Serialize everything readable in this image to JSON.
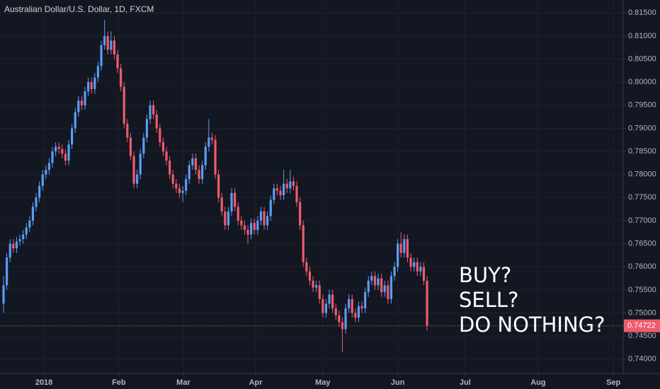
{
  "chart_data": {
    "type": "candlestick",
    "title": "Australian Dollar/U.S. Dollar, 1D, FXCM",
    "annotations": [
      "BUY?",
      "SELL?",
      "DO NOTHING?"
    ],
    "up_color": "#5b9cf6",
    "down_color": "#ef5b6b",
    "grid": true,
    "ylim": [
      0.7369,
      0.8178
    ],
    "xlim": [
      -1.09,
      190.2
    ],
    "yticks": [
      {
        "value": 0.74,
        "label": "0.74000"
      },
      {
        "value": 0.745,
        "label": "0.74500"
      },
      {
        "value": 0.75,
        "label": "0.75000"
      },
      {
        "value": 0.755,
        "label": "0.75500"
      },
      {
        "value": 0.76,
        "label": "0.76000"
      },
      {
        "value": 0.765,
        "label": "0.76500"
      },
      {
        "value": 0.77,
        "label": "0.77000"
      },
      {
        "value": 0.775,
        "label": "0.77500"
      },
      {
        "value": 0.78,
        "label": "0.78000"
      },
      {
        "value": 0.785,
        "label": "0.78500"
      },
      {
        "value": 0.79,
        "label": "0.79000"
      },
      {
        "value": 0.795,
        "label": "0.79500"
      },
      {
        "value": 0.8,
        "label": "0.80000"
      },
      {
        "value": 0.805,
        "label": "0.80500"
      },
      {
        "value": 0.81,
        "label": "0.81000"
      },
      {
        "value": 0.815,
        "label": "0.81500"
      }
    ],
    "xticks": [
      {
        "value": 12.4,
        "label": "2018"
      },
      {
        "value": 35.4,
        "label": "Feb"
      },
      {
        "value": 55.2,
        "label": "Mar"
      },
      {
        "value": 77.4,
        "label": "Apr"
      },
      {
        "value": 98.0,
        "label": "May"
      },
      {
        "value": 121.0,
        "label": "Jun"
      },
      {
        "value": 141.7,
        "label": "Jul"
      },
      {
        "value": 164.1,
        "label": "Aug"
      },
      {
        "value": 187.2,
        "label": "Sep"
      }
    ],
    "open": [
      0.752,
      0.756,
      0.762,
      0.765,
      0.764,
      0.7655,
      0.766,
      0.767,
      0.7685,
      0.77,
      0.773,
      0.775,
      0.7775,
      0.78,
      0.781,
      0.7825,
      0.785,
      0.786,
      0.7855,
      0.7845,
      0.783,
      0.7865,
      0.79,
      0.7935,
      0.796,
      0.795,
      0.798,
      0.8,
      0.7985,
      0.801,
      0.8035,
      0.808,
      0.81,
      0.807,
      0.809,
      0.806,
      0.803,
      0.799,
      0.791,
      0.788,
      0.784,
      0.778,
      0.78,
      0.7845,
      0.788,
      0.792,
      0.795,
      0.793,
      0.79,
      0.787,
      0.785,
      0.783,
      0.78,
      0.778,
      0.777,
      0.776,
      0.7765,
      0.779,
      0.782,
      0.7835,
      0.781,
      0.779,
      0.782,
      0.786,
      0.788,
      0.7875,
      0.78,
      0.775,
      0.772,
      0.769,
      0.772,
      0.776,
      0.773,
      0.77,
      0.769,
      0.768,
      0.767,
      0.7695,
      0.768,
      0.77,
      0.772,
      0.769,
      0.771,
      0.7745,
      0.777,
      0.7765,
      0.7755,
      0.778,
      0.777,
      0.7785,
      0.7775,
      0.774,
      0.769,
      0.761,
      0.759,
      0.757,
      0.7555,
      0.756,
      0.753,
      0.75,
      0.752,
      0.754,
      0.751,
      0.7495,
      0.748,
      0.7465,
      0.751,
      0.753,
      0.75,
      0.749,
      0.7515,
      0.751,
      0.7545,
      0.757,
      0.758,
      0.756,
      0.7575,
      0.7545,
      0.756,
      0.753,
      0.758,
      0.76,
      0.765,
      0.763,
      0.766,
      0.762,
      0.76,
      0.761,
      0.759,
      0.76,
      0.757
    ],
    "high": [
      0.758,
      0.763,
      0.766,
      0.766,
      0.7665,
      0.767,
      0.768,
      0.7695,
      0.771,
      0.774,
      0.776,
      0.7785,
      0.781,
      0.782,
      0.7835,
      0.786,
      0.787,
      0.787,
      0.7865,
      0.7855,
      0.7875,
      0.791,
      0.7945,
      0.797,
      0.797,
      0.799,
      0.801,
      0.801,
      0.802,
      0.8045,
      0.809,
      0.8135,
      0.811,
      0.811,
      0.81,
      0.807,
      0.804,
      0.8,
      0.792,
      0.789,
      0.785,
      0.781,
      0.7855,
      0.789,
      0.793,
      0.796,
      0.796,
      0.794,
      0.791,
      0.788,
      0.786,
      0.784,
      0.781,
      0.779,
      0.778,
      0.7775,
      0.78,
      0.783,
      0.7845,
      0.7845,
      0.782,
      0.783,
      0.787,
      0.792,
      0.789,
      0.7885,
      0.781,
      0.776,
      0.773,
      0.773,
      0.777,
      0.777,
      0.774,
      0.771,
      0.77,
      0.769,
      0.7705,
      0.7705,
      0.771,
      0.773,
      0.773,
      0.772,
      0.7755,
      0.778,
      0.778,
      0.7775,
      0.781,
      0.779,
      0.781,
      0.7795,
      0.7785,
      0.775,
      0.77,
      0.762,
      0.76,
      0.758,
      0.757,
      0.757,
      0.754,
      0.753,
      0.755,
      0.755,
      0.752,
      0.7505,
      0.749,
      0.752,
      0.754,
      0.754,
      0.751,
      0.7525,
      0.7525,
      0.7555,
      0.758,
      0.759,
      0.759,
      0.7585,
      0.7585,
      0.757,
      0.757,
      0.759,
      0.761,
      0.766,
      0.7675,
      0.767,
      0.767,
      0.763,
      0.762,
      0.762,
      0.761,
      0.761,
      0.758
    ],
    "low": [
      0.75,
      0.755,
      0.761,
      0.763,
      0.763,
      0.7645,
      0.765,
      0.766,
      0.7675,
      0.769,
      0.772,
      0.774,
      0.7765,
      0.779,
      0.78,
      0.7815,
      0.784,
      0.7845,
      0.7835,
      0.782,
      0.782,
      0.7855,
      0.789,
      0.7925,
      0.794,
      0.794,
      0.797,
      0.7975,
      0.7975,
      0.8,
      0.8025,
      0.807,
      0.806,
      0.806,
      0.805,
      0.802,
      0.798,
      0.79,
      0.787,
      0.783,
      0.777,
      0.777,
      0.779,
      0.7835,
      0.787,
      0.791,
      0.792,
      0.789,
      0.786,
      0.784,
      0.782,
      0.779,
      0.777,
      0.776,
      0.775,
      0.774,
      0.7755,
      0.778,
      0.781,
      0.78,
      0.778,
      0.778,
      0.781,
      0.785,
      0.7865,
      0.779,
      0.774,
      0.771,
      0.768,
      0.768,
      0.771,
      0.772,
      0.769,
      0.768,
      0.767,
      0.765,
      0.766,
      0.767,
      0.767,
      0.769,
      0.768,
      0.768,
      0.77,
      0.7735,
      0.7755,
      0.7745,
      0.7745,
      0.776,
      0.776,
      0.7765,
      0.773,
      0.768,
      0.76,
      0.758,
      0.756,
      0.7545,
      0.7545,
      0.752,
      0.749,
      0.749,
      0.751,
      0.75,
      0.7485,
      0.747,
      0.7415,
      0.7455,
      0.75,
      0.749,
      0.748,
      0.748,
      0.75,
      0.75,
      0.7535,
      0.756,
      0.755,
      0.755,
      0.7535,
      0.7535,
      0.752,
      0.752,
      0.757,
      0.759,
      0.762,
      0.762,
      0.761,
      0.759,
      0.759,
      0.758,
      0.758,
      0.756,
      0.7462
    ],
    "close": [
      0.756,
      0.762,
      0.765,
      0.764,
      0.7655,
      0.766,
      0.767,
      0.7685,
      0.77,
      0.773,
      0.775,
      0.7775,
      0.78,
      0.781,
      0.7825,
      0.785,
      0.786,
      0.7855,
      0.7845,
      0.783,
      0.7865,
      0.79,
      0.7935,
      0.796,
      0.795,
      0.798,
      0.8,
      0.7985,
      0.801,
      0.8035,
      0.808,
      0.81,
      0.807,
      0.809,
      0.806,
      0.803,
      0.799,
      0.791,
      0.788,
      0.784,
      0.778,
      0.78,
      0.7845,
      0.788,
      0.792,
      0.795,
      0.793,
      0.79,
      0.787,
      0.785,
      0.783,
      0.78,
      0.778,
      0.777,
      0.776,
      0.7765,
      0.779,
      0.782,
      0.7835,
      0.781,
      0.779,
      0.782,
      0.786,
      0.788,
      0.7875,
      0.78,
      0.775,
      0.772,
      0.769,
      0.772,
      0.776,
      0.773,
      0.77,
      0.769,
      0.768,
      0.767,
      0.7695,
      0.768,
      0.77,
      0.772,
      0.769,
      0.771,
      0.7745,
      0.777,
      0.7765,
      0.7755,
      0.778,
      0.777,
      0.7785,
      0.7775,
      0.774,
      0.769,
      0.761,
      0.759,
      0.757,
      0.7555,
      0.756,
      0.753,
      0.75,
      0.752,
      0.754,
      0.751,
      0.7495,
      0.748,
      0.7465,
      0.751,
      0.753,
      0.75,
      0.749,
      0.7515,
      0.751,
      0.7545,
      0.757,
      0.758,
      0.756,
      0.7575,
      0.7545,
      0.756,
      0.753,
      0.758,
      0.76,
      0.765,
      0.763,
      0.766,
      0.762,
      0.76,
      0.761,
      0.759,
      0.76,
      0.757,
      0.74722
    ]
  }
}
